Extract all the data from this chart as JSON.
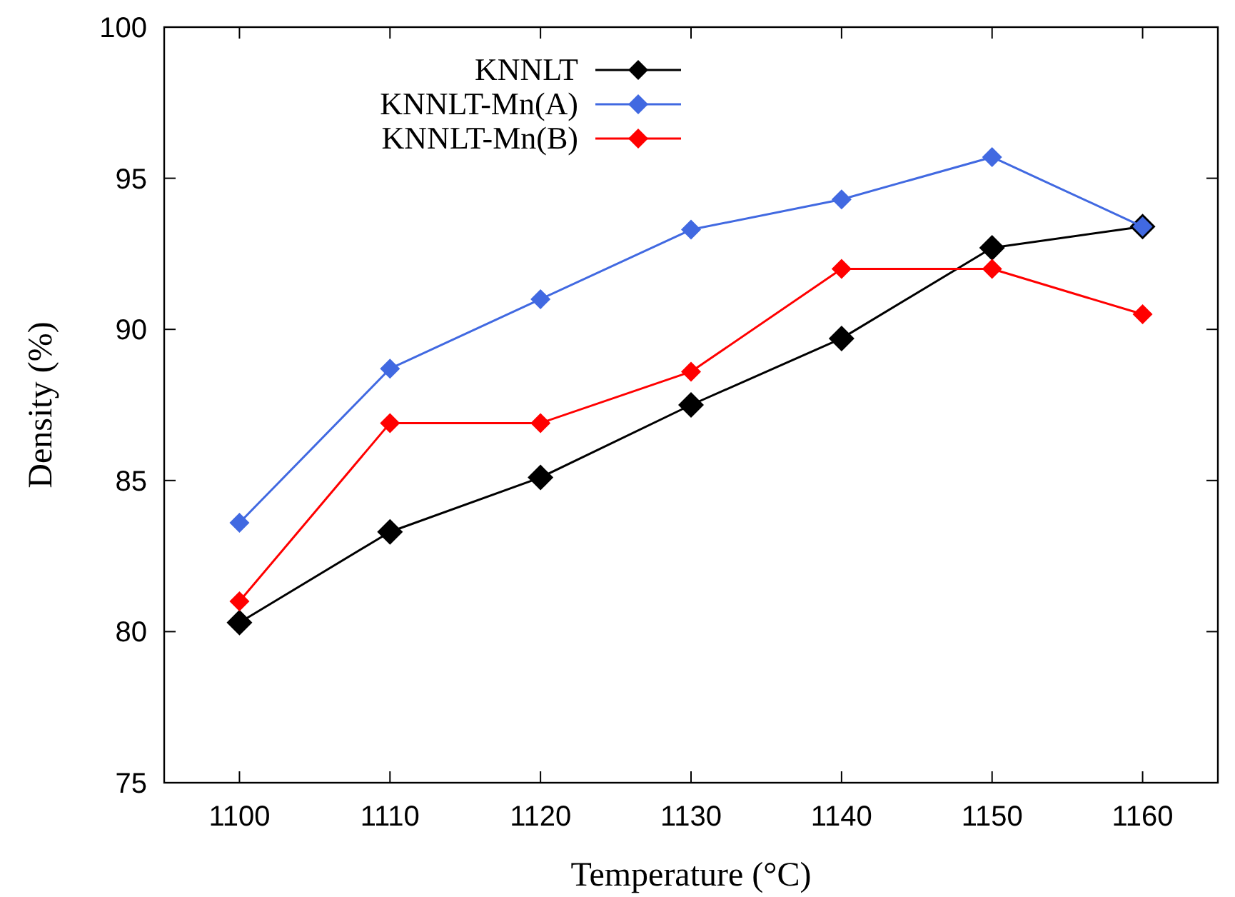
{
  "chart_data": {
    "type": "line",
    "xlabel": "Temperature (°C)",
    "ylabel": "Density (%)",
    "x": [
      1100,
      1110,
      1120,
      1130,
      1140,
      1150,
      1160
    ],
    "xlim": [
      1095,
      1165
    ],
    "xticks": [
      1100,
      1110,
      1120,
      1130,
      1140,
      1150,
      1160
    ],
    "ylim": [
      75,
      100
    ],
    "yticks": [
      75,
      80,
      85,
      90,
      95,
      100
    ],
    "grid": false,
    "legend": "top",
    "marker": "diamond",
    "line_style": "solid",
    "series": [
      {
        "name": "KNNLT",
        "color": "#000000",
        "values": [
          80.3,
          83.3,
          85.1,
          87.5,
          89.7,
          92.7,
          93.4
        ]
      },
      {
        "name": "KNNLT-Mn(A)",
        "color": "#4169e1",
        "values": [
          83.6,
          88.7,
          91.0,
          93.3,
          94.3,
          95.7,
          93.4
        ]
      },
      {
        "name": "KNNLT-Mn(B)",
        "color": "#ff0000",
        "values": [
          81.0,
          86.9,
          86.9,
          88.6,
          92.0,
          92.0,
          90.5
        ]
      }
    ]
  }
}
